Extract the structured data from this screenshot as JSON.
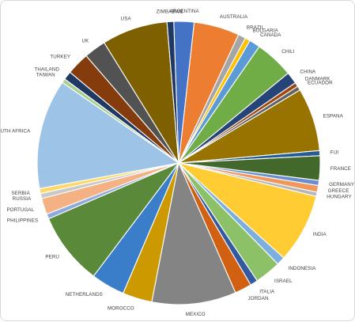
{
  "chart_data": {
    "type": "pie",
    "title": "",
    "legend": "none",
    "slices": [
      {
        "label": "ARGENTINA",
        "value": 2.4,
        "color": "#4472C4"
      },
      {
        "label": "AUSTRALIA",
        "value": 5.4,
        "color": "#ED7D31"
      },
      {
        "label": "BRAZIL",
        "value": 0.9,
        "color": "#A5A5A5"
      },
      {
        "label": "BULGARIA",
        "value": 0.6,
        "color": "#FFC000"
      },
      {
        "label": "CANADA",
        "value": 1.3,
        "color": "#5B9BD5"
      },
      {
        "label": "CHILI",
        "value": 4.6,
        "color": "#70AD47"
      },
      {
        "label": "CHINA",
        "value": 1.4,
        "color": "#264478"
      },
      {
        "label": "DANMARK",
        "value": 0.5,
        "color": "#9E480E"
      },
      {
        "label": "ECUADOR",
        "value": 0.5,
        "color": "#636363"
      },
      {
        "label": "ESPANA",
        "value": 7.5,
        "color": "#997300"
      },
      {
        "label": "FIJI",
        "value": 0.6,
        "color": "#255E91"
      },
      {
        "label": "FRANCE",
        "value": 2.9,
        "color": "#43682B"
      },
      {
        "label": "GERMANY",
        "value": 0.6,
        "color": "#698ED0"
      },
      {
        "label": "GREECE",
        "value": 0.8,
        "color": "#F1975A"
      },
      {
        "label": "HUNGARY",
        "value": 0.5,
        "color": "#B7B7B7"
      },
      {
        "label": "INDIA",
        "value": 8.2,
        "color": "#FFCD33"
      },
      {
        "label": "INDONESIA",
        "value": 1.0,
        "color": "#7CAFDD"
      },
      {
        "label": "ISRAEL",
        "value": 3.1,
        "color": "#8CC168"
      },
      {
        "label": "ITALIA",
        "value": 0.9,
        "color": "#335AA1"
      },
      {
        "label": "JORDAN",
        "value": 2.0,
        "color": "#D26012"
      },
      {
        "label": "MEXICO",
        "value": 10.0,
        "color": "#848484"
      },
      {
        "label": "MOROCCO",
        "value": 3.5,
        "color": "#CC9A00"
      },
      {
        "label": "NETHERLANDS",
        "value": 4.0,
        "color": "#3A7DC9"
      },
      {
        "label": "PERU",
        "value": 8.6,
        "color": "#5A8A39"
      },
      {
        "label": "PHILIPPINES",
        "value": 0.6,
        "color": "#8FAADC"
      },
      {
        "label": "PORTUGAL",
        "value": 1.9,
        "color": "#F4B183"
      },
      {
        "label": "RUSSIA",
        "value": 0.6,
        "color": "#C9C9C9"
      },
      {
        "label": "SERBIA",
        "value": 0.6,
        "color": "#FFD966"
      },
      {
        "label": "SOUTH AFRICA",
        "value": 13.0,
        "color": "#9DC3E6"
      },
      {
        "label": "TAIWAN",
        "value": 0.5,
        "color": "#A9D18E"
      },
      {
        "label": "THAILAND",
        "value": 1.0,
        "color": "#203864"
      },
      {
        "label": "TURKEY",
        "value": 2.7,
        "color": "#843C0C"
      },
      {
        "label": "UK",
        "value": 2.6,
        "color": "#525252"
      },
      {
        "label": "USA",
        "value": 7.8,
        "color": "#7F6000"
      },
      {
        "label": "ZIMBABWE",
        "value": 0.8,
        "color": "#1F3864"
      }
    ]
  }
}
